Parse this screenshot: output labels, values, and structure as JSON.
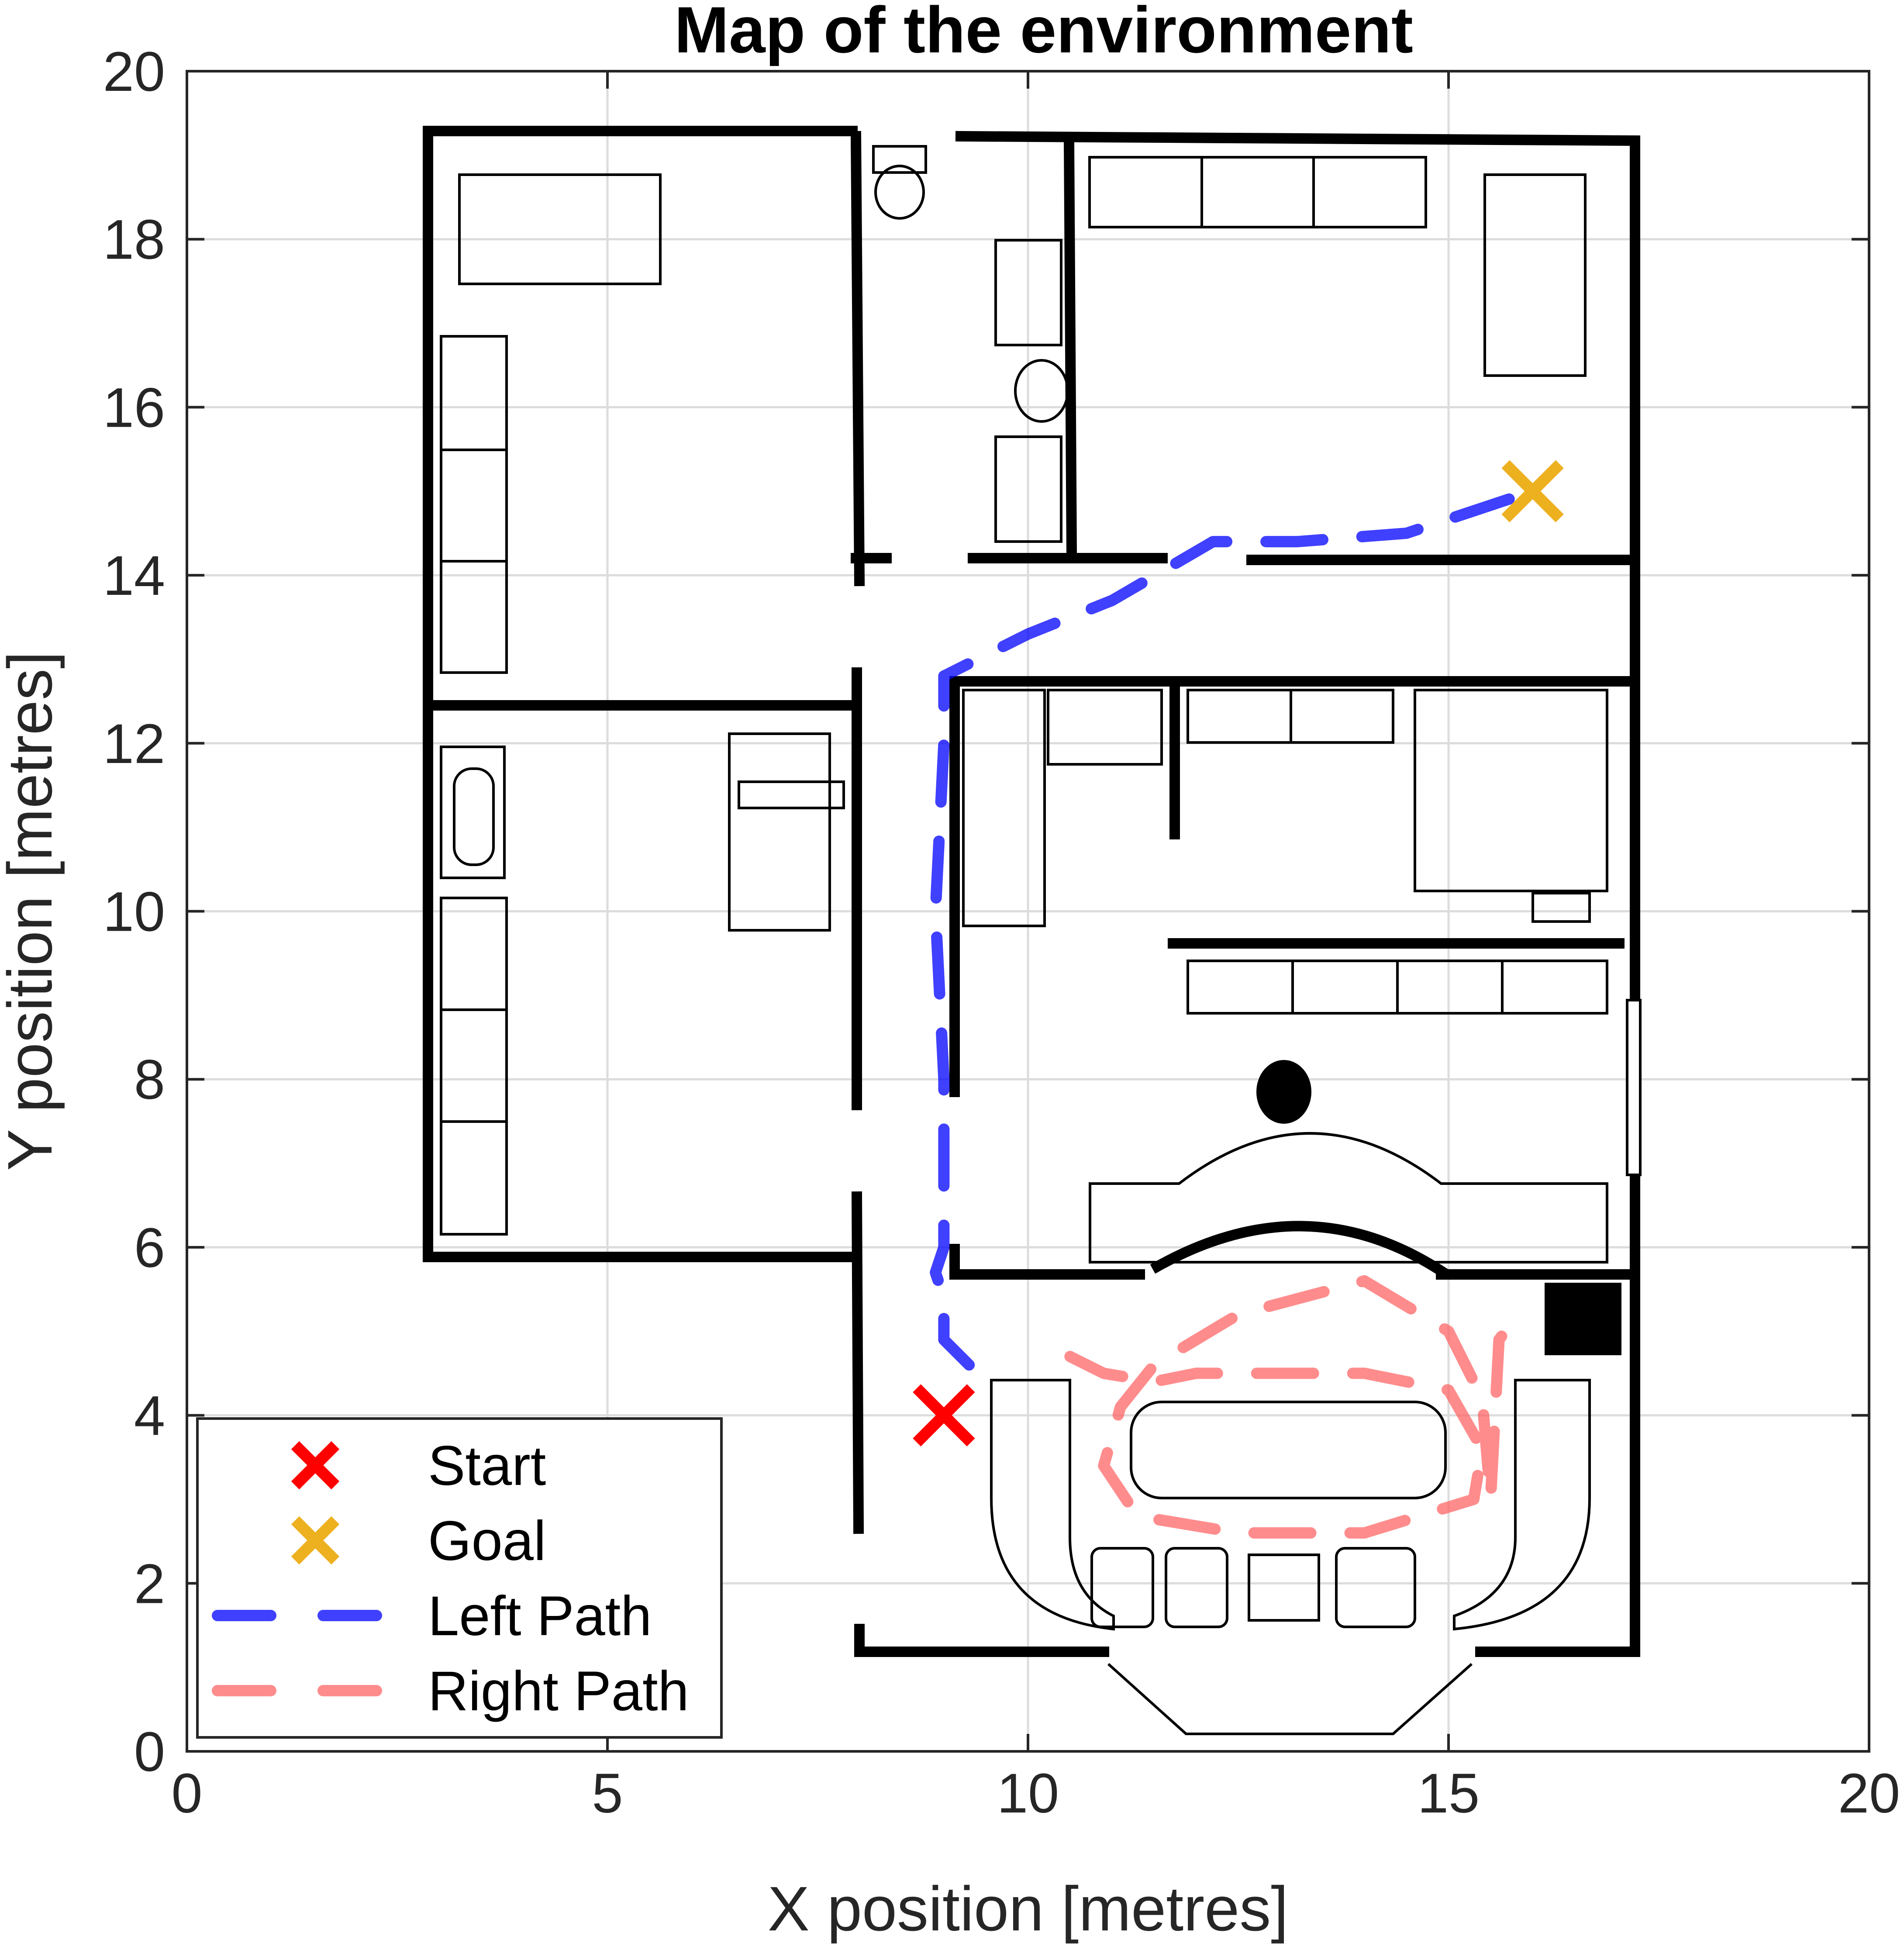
{
  "chart_data": {
    "type": "line",
    "title": "Map of the environment",
    "xlabel": "X position [metres]",
    "ylabel": "Y position [metres]",
    "xlim": [
      0,
      20
    ],
    "ylim": [
      0,
      20
    ],
    "xticks": [
      0,
      5,
      10,
      15,
      20
    ],
    "yticks": [
      0,
      2,
      4,
      6,
      8,
      10,
      12,
      14,
      16,
      18,
      20
    ],
    "xtick_labels": [
      "0",
      "5",
      "10",
      "15",
      "20"
    ],
    "ytick_labels": [
      "0",
      "2",
      "4",
      "6",
      "8",
      "10",
      "12",
      "14",
      "16",
      "18",
      "20"
    ],
    "grid": true,
    "legend_position": "bottom-left",
    "background": "floor plan of the environment (walls and furniture)",
    "markers": [
      {
        "name": "Start",
        "x": 9.0,
        "y": 4.0,
        "symbol": "x",
        "color": "#ff0000"
      },
      {
        "name": "Goal",
        "x": 16.0,
        "y": 15.0,
        "symbol": "x",
        "color": "#edb120"
      }
    ],
    "series": [
      {
        "name": "Left Path",
        "color": "#0000ff",
        "style": "dashed",
        "x": [
          9.3,
          9.0,
          9.0,
          8.9,
          9.0,
          9.0,
          9.0,
          8.9,
          9.0,
          9.0,
          9.2,
          10.0,
          11.0,
          12.2,
          13.2,
          14.5,
          16.0
        ],
        "y": [
          4.6,
          4.9,
          5.4,
          5.7,
          6.0,
          7.8,
          8.0,
          10.0,
          12.0,
          12.8,
          12.9,
          13.3,
          13.7,
          14.4,
          14.4,
          14.5,
          15.0
        ]
      },
      {
        "name": "Right Path",
        "color": "#ff6666",
        "style": "dashed",
        "x": [
          10.5,
          10.9,
          11.5,
          12.0,
          13.0,
          14.0,
          15.0,
          15.4,
          15.3,
          14.0,
          12.5,
          11.3,
          10.9,
          11.1,
          11.5,
          12.5,
          14.0,
          15.0,
          15.4,
          15.5,
          15.6,
          15.9
        ],
        "y": [
          4.7,
          4.5,
          4.4,
          4.5,
          4.5,
          4.5,
          4.3,
          3.6,
          3.0,
          2.6,
          2.6,
          2.8,
          3.4,
          4.1,
          4.6,
          5.2,
          5.6,
          5.0,
          4.2,
          3.0,
          4.9,
          5.3
        ]
      }
    ]
  }
}
